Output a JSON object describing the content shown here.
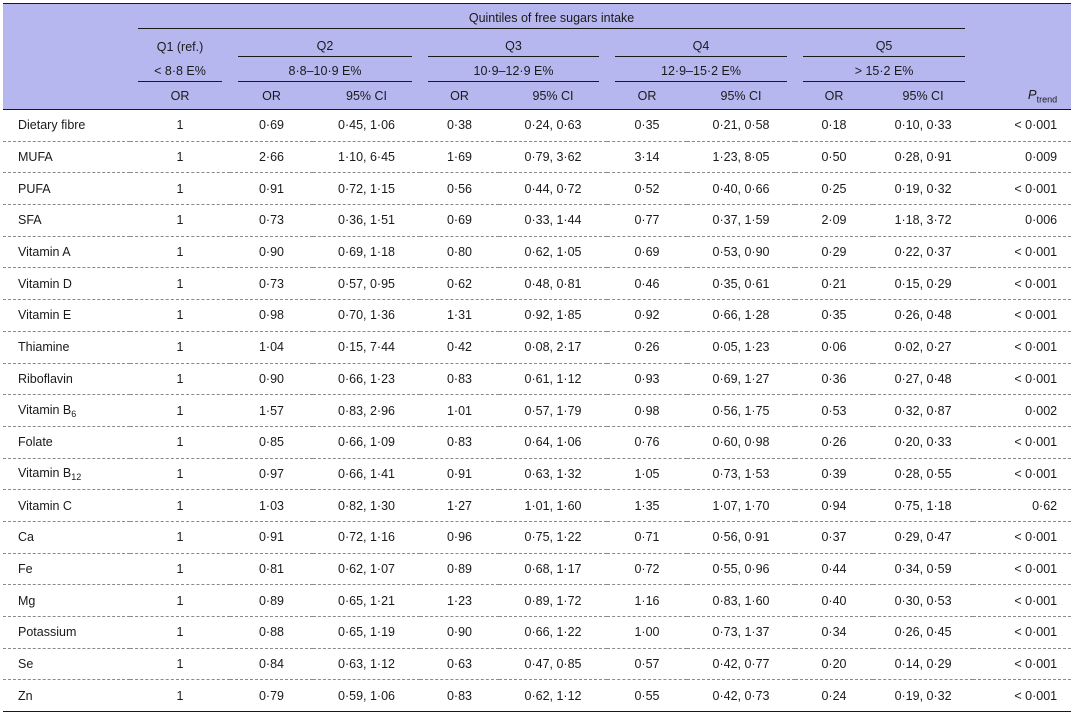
{
  "header": {
    "quintiles_title": "Quintiles of free sugars intake",
    "groups": [
      {
        "name": "Q1 (ref.)",
        "range": "< 8·8 E%"
      },
      {
        "name": "Q2",
        "range": "8·8–10·9 E%"
      },
      {
        "name": "Q3",
        "range": "10·9–12·9 E%"
      },
      {
        "name": "Q4",
        "range": "12·9–15·2 E%"
      },
      {
        "name": "Q5",
        "range": "> 15·2 E%"
      }
    ],
    "or_label": "OR",
    "ci_label": "95% CI",
    "p_trend_main": "P",
    "p_trend_sub": "trend"
  },
  "rows": [
    {
      "nutrient": "Dietary fibre",
      "sub": "",
      "q1": "1",
      "q2_or": "0·69",
      "q2_ci": "0·45, 1·06",
      "q3_or": "0·38",
      "q3_ci": "0·24, 0·63",
      "q4_or": "0·35",
      "q4_ci": "0·21, 0·58",
      "q5_or": "0·18",
      "q5_ci": "0·10, 0·33",
      "p": "< 0·001"
    },
    {
      "nutrient": "MUFA",
      "sub": "",
      "q1": "1",
      "q2_or": "2·66",
      "q2_ci": "1·10, 6·45",
      "q3_or": "1·69",
      "q3_ci": "0·79, 3·62",
      "q4_or": "3·14",
      "q4_ci": "1·23, 8·05",
      "q5_or": "0·50",
      "q5_ci": "0·28, 0·91",
      "p": "0·009"
    },
    {
      "nutrient": "PUFA",
      "sub": "",
      "q1": "1",
      "q2_or": "0·91",
      "q2_ci": "0·72, 1·15",
      "q3_or": "0·56",
      "q3_ci": "0·44, 0·72",
      "q4_or": "0·52",
      "q4_ci": "0·40, 0·66",
      "q5_or": "0·25",
      "q5_ci": "0·19, 0·32",
      "p": "< 0·001"
    },
    {
      "nutrient": "SFA",
      "sub": "",
      "q1": "1",
      "q2_or": "0·73",
      "q2_ci": "0·36, 1·51",
      "q3_or": "0·69",
      "q3_ci": "0·33, 1·44",
      "q4_or": "0·77",
      "q4_ci": "0·37, 1·59",
      "q5_or": "2·09",
      "q5_ci": "1·18, 3·72",
      "p": "0·006"
    },
    {
      "nutrient": "Vitamin A",
      "sub": "",
      "q1": "1",
      "q2_or": "0·90",
      "q2_ci": "0·69, 1·18",
      "q3_or": "0·80",
      "q3_ci": "0·62, 1·05",
      "q4_or": "0·69",
      "q4_ci": "0·53, 0·90",
      "q5_or": "0·29",
      "q5_ci": "0·22, 0·37",
      "p": "< 0·001"
    },
    {
      "nutrient": "Vitamin D",
      "sub": "",
      "q1": "1",
      "q2_or": "0·73",
      "q2_ci": "0·57, 0·95",
      "q3_or": "0·62",
      "q3_ci": "0·48, 0·81",
      "q4_or": "0·46",
      "q4_ci": "0·35, 0·61",
      "q5_or": "0·21",
      "q5_ci": "0·15, 0·29",
      "p": "< 0·001"
    },
    {
      "nutrient": "Vitamin E",
      "sub": "",
      "q1": "1",
      "q2_or": "0·98",
      "q2_ci": "0·70, 1·36",
      "q3_or": "1·31",
      "q3_ci": "0·92, 1·85",
      "q4_or": "0·92",
      "q4_ci": "0·66, 1·28",
      "q5_or": "0·35",
      "q5_ci": "0·26, 0·48",
      "p": "< 0·001"
    },
    {
      "nutrient": "Thiamine",
      "sub": "",
      "q1": "1",
      "q2_or": "1·04",
      "q2_ci": "0·15, 7·44",
      "q3_or": "0·42",
      "q3_ci": "0·08, 2·17",
      "q4_or": "0·26",
      "q4_ci": "0·05, 1·23",
      "q5_or": "0·06",
      "q5_ci": "0·02, 0·27",
      "p": "< 0·001"
    },
    {
      "nutrient": "Riboflavin",
      "sub": "",
      "q1": "1",
      "q2_or": "0·90",
      "q2_ci": "0·66, 1·23",
      "q3_or": "0·83",
      "q3_ci": "0·61, 1·12",
      "q4_or": "0·93",
      "q4_ci": "0·69, 1·27",
      "q5_or": "0·36",
      "q5_ci": "0·27, 0·48",
      "p": "< 0·001"
    },
    {
      "nutrient": "Vitamin B",
      "sub": "6",
      "q1": "1",
      "q2_or": "1·57",
      "q2_ci": "0·83, 2·96",
      "q3_or": "1·01",
      "q3_ci": "0·57, 1·79",
      "q4_or": "0·98",
      "q4_ci": "0·56, 1·75",
      "q5_or": "0·53",
      "q5_ci": "0·32, 0·87",
      "p": "0·002"
    },
    {
      "nutrient": "Folate",
      "sub": "",
      "q1": "1",
      "q2_or": "0·85",
      "q2_ci": "0·66, 1·09",
      "q3_or": "0·83",
      "q3_ci": "0·64, 1·06",
      "q4_or": "0·76",
      "q4_ci": "0·60, 0·98",
      "q5_or": "0·26",
      "q5_ci": "0·20, 0·33",
      "p": "< 0·001"
    },
    {
      "nutrient": "Vitamin B",
      "sub": "12",
      "q1": "1",
      "q2_or": "0·97",
      "q2_ci": "0·66, 1·41",
      "q3_or": "0·91",
      "q3_ci": "0·63, 1·32",
      "q4_or": "1·05",
      "q4_ci": "0·73, 1·53",
      "q5_or": "0·39",
      "q5_ci": "0·28, 0·55",
      "p": "< 0·001"
    },
    {
      "nutrient": "Vitamin C",
      "sub": "",
      "q1": "1",
      "q2_or": "1·03",
      "q2_ci": "0·82, 1·30",
      "q3_or": "1·27",
      "q3_ci": "1·01, 1·60",
      "q4_or": "1·35",
      "q4_ci": "1·07, 1·70",
      "q5_or": "0·94",
      "q5_ci": "0·75, 1·18",
      "p": "0·62"
    },
    {
      "nutrient": "Ca",
      "sub": "",
      "q1": "1",
      "q2_or": "0·91",
      "q2_ci": "0·72, 1·16",
      "q3_or": "0·96",
      "q3_ci": "0·75, 1·22",
      "q4_or": "0·71",
      "q4_ci": "0·56, 0·91",
      "q5_or": "0·37",
      "q5_ci": "0·29, 0·47",
      "p": "< 0·001"
    },
    {
      "nutrient": "Fe",
      "sub": "",
      "q1": "1",
      "q2_or": "0·81",
      "q2_ci": "0·62, 1·07",
      "q3_or": "0·89",
      "q3_ci": "0·68, 1·17",
      "q4_or": "0·72",
      "q4_ci": "0·55, 0·96",
      "q5_or": "0·44",
      "q5_ci": "0·34, 0·59",
      "p": "< 0·001"
    },
    {
      "nutrient": "Mg",
      "sub": "",
      "q1": "1",
      "q2_or": "0·89",
      "q2_ci": "0·65, 1·21",
      "q3_or": "1·23",
      "q3_ci": "0·89, 1·72",
      "q4_or": "1·16",
      "q4_ci": "0·83, 1·60",
      "q5_or": "0·40",
      "q5_ci": "0·30, 0·53",
      "p": "< 0·001"
    },
    {
      "nutrient": "Potassium",
      "sub": "",
      "q1": "1",
      "q2_or": "0·88",
      "q2_ci": "0·65, 1·19",
      "q3_or": "0·90",
      "q3_ci": "0·66, 1·22",
      "q4_or": "1·00",
      "q4_ci": "0·73, 1·37",
      "q5_or": "0·34",
      "q5_ci": "0·26, 0·45",
      "p": "< 0·001"
    },
    {
      "nutrient": "Se",
      "sub": "",
      "q1": "1",
      "q2_or": "0·84",
      "q2_ci": "0·63, 1·12",
      "q3_or": "0·63",
      "q3_ci": "0·47, 0·85",
      "q4_or": "0·57",
      "q4_ci": "0·42, 0·77",
      "q5_or": "0·20",
      "q5_ci": "0·14, 0·29",
      "p": "< 0·001"
    },
    {
      "nutrient": "Zn",
      "sub": "",
      "q1": "1",
      "q2_or": "0·79",
      "q2_ci": "0·59, 1·06",
      "q3_or": "0·83",
      "q3_ci": "0·62, 1·12",
      "q4_or": "0·55",
      "q4_ci": "0·42, 0·73",
      "q5_or": "0·24",
      "q5_ci": "0·19, 0·32",
      "p": "< 0·001"
    }
  ]
}
